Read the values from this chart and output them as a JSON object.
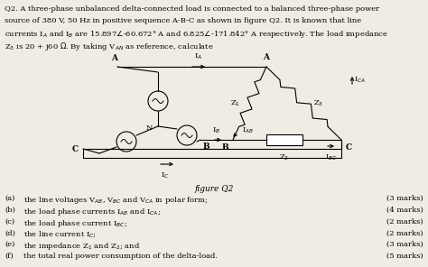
{
  "background_color": "#f0ece4",
  "top_lines": [
    "Q2. A three-phase unbalanced delta-connected load is connected to a balanced three-phase power",
    "source of 380 V, 50 Hz in positive sequence A-B-C as shown in figure Q2. It is known that line",
    "currents I_A and I_B are 15.897<-60.672 A and 6.825<-171.842 A respectively. The load impedance",
    "Z_3 is 20 + j60 Ohm. By taking V_AN as reference, calculate"
  ],
  "figure_label": "figure Q2",
  "q_labels": [
    "(a)",
    "(b)",
    "(c)",
    "(d)",
    "(e)",
    "(f)"
  ],
  "q_texts": [
    "the line voltages V_AB, V_BC and V_CA in polar form;",
    "the load phase currents I_AB and I_CA;",
    "the load phase current I_BC;",
    "the line current I_C;",
    "the impedance Z_1 and Z_2; and",
    "the total real power consumption of the delta-load."
  ],
  "marks": [
    "(3 marks)",
    "(4 marks)",
    "(2 marks)",
    "(2 marks)",
    "(3 marks)",
    "(5 marks)"
  ]
}
